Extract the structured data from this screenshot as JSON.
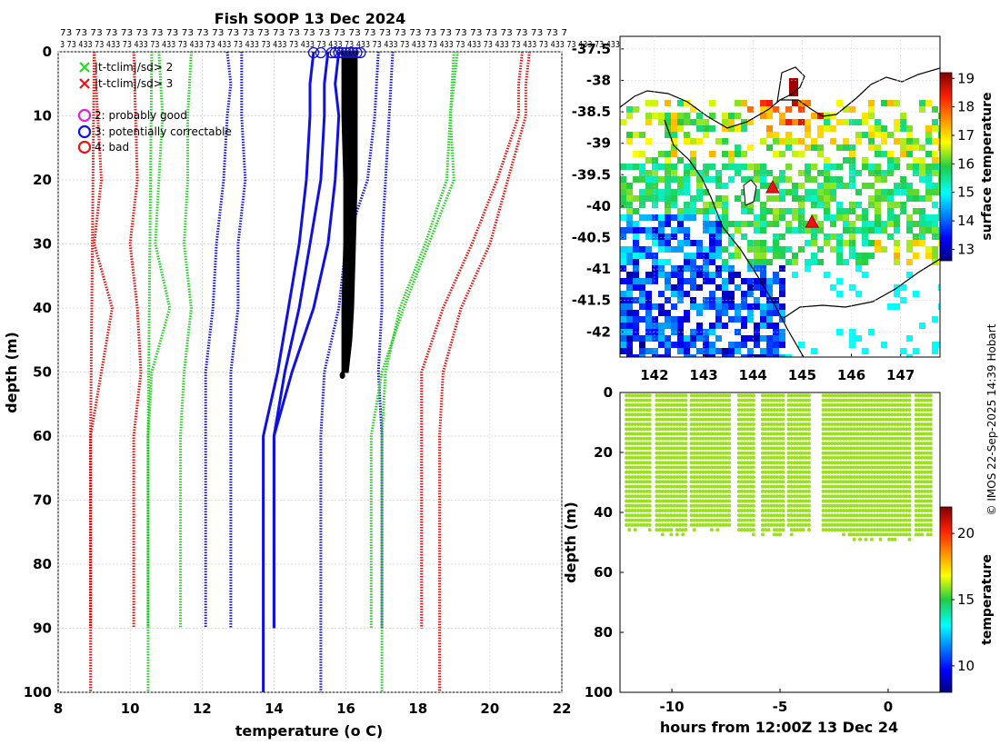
{
  "chart_data": [
    {
      "type": "line",
      "title": "Fish SOOP 13 Dec 2024",
      "xlabel": "temperature",
      "xlabel_unit": "(o C)",
      "ylabel": "depth (m)",
      "xlim": [
        8,
        22
      ],
      "ylim": [
        0,
        100
      ],
      "x_ticks": [
        "8",
        "10",
        "12",
        "14",
        "16",
        "18",
        "20",
        "22"
      ],
      "y_ticks": [
        "0",
        "10",
        "20",
        "30",
        "40",
        "50",
        "60",
        "70",
        "80",
        "90",
        "100"
      ],
      "top_labels_row1": "73 73 73 73 73 73 73 73 73 73 73 73 73 73 73 73 73 73 73 73 73 73 73 73 73 73 73 73 73 73 73 73 73 7",
      "top_labels_row2": "3 73 433 73 433 73 433 73 433 73 433 73 433 73 433 73 433 73 433 73 433 73 433 73 433 73 433 73 433 73 433 73 433 73 433 73 433 73 433 73 433",
      "legend": [
        {
          "marker": "x",
          "color": "#22dd22",
          "label": "|t-tclim|/sd> 2"
        },
        {
          "marker": "x",
          "color": "#ee1111",
          "label": "|t-tclim|/sd> 3"
        },
        {
          "marker": "o",
          "color": "#dd22dd",
          "label": "2: probably good"
        },
        {
          "marker": "o",
          "color": "#1111dd",
          "label": "3: potentially correctable"
        },
        {
          "marker": "o",
          "color": "#ee1111",
          "label": "4: bad"
        }
      ],
      "series": [
        {
          "name": "clim -3sd A",
          "color": "#dd1111",
          "style": "dotted",
          "depth": [
            0,
            10,
            20,
            30,
            40,
            50,
            60,
            90
          ],
          "values": [
            9.0,
            9.1,
            9.2,
            9.0,
            9.5,
            9.2,
            8.9,
            8.9
          ]
        },
        {
          "name": "clim -3sd B",
          "color": "#dd1111",
          "style": "dotted",
          "depth": [
            0,
            60,
            100
          ],
          "values": [
            9.0,
            8.9,
            8.9
          ]
        },
        {
          "name": "clim -3sd C",
          "color": "#dd1111",
          "style": "dotted",
          "depth": [
            0,
            10,
            20,
            30,
            40,
            50,
            60,
            90
          ],
          "values": [
            10.1,
            10.15,
            10.2,
            10.0,
            10.2,
            10.3,
            10.1,
            10.1
          ]
        },
        {
          "name": "clim -2sd A",
          "color": "#22cc22",
          "style": "dotted",
          "depth": [
            0,
            10,
            20,
            30,
            40,
            50,
            60,
            90
          ],
          "values": [
            10.8,
            10.9,
            10.8,
            10.7,
            11.1,
            10.6,
            10.5,
            10.5
          ]
        },
        {
          "name": "clim -2sd B",
          "color": "#22cc22",
          "style": "dotted",
          "depth": [
            0,
            10,
            20,
            30,
            40,
            50,
            60,
            90
          ],
          "values": [
            11.7,
            11.6,
            11.6,
            11.5,
            11.7,
            11.5,
            11.4,
            11.4
          ]
        },
        {
          "name": "clim -2sd C",
          "color": "#22cc22",
          "style": "dotted",
          "depth": [
            0,
            60,
            100
          ],
          "values": [
            10.6,
            10.5,
            10.5
          ]
        },
        {
          "name": "clim -1sd A",
          "color": "#1111dd",
          "style": "dotted",
          "depth": [
            0,
            5,
            10,
            20,
            30,
            40,
            50,
            60,
            90
          ],
          "values": [
            12.7,
            12.8,
            12.7,
            12.6,
            12.4,
            12.3,
            12.1,
            12.1,
            12.1
          ]
        },
        {
          "name": "clim -1sd B",
          "color": "#1111dd",
          "style": "dotted",
          "depth": [
            0,
            10,
            20,
            30,
            40,
            50,
            60,
            90
          ],
          "values": [
            13.1,
            13.1,
            13.2,
            13.0,
            13.0,
            12.8,
            12.8,
            12.8
          ]
        },
        {
          "name": "clim +1sd A",
          "color": "#1111dd",
          "style": "dotted",
          "depth": [
            0,
            10,
            20,
            30,
            40,
            50,
            60,
            100
          ],
          "values": [
            16.9,
            16.8,
            16.6,
            16.0,
            15.8,
            15.4,
            15.3,
            15.3
          ]
        },
        {
          "name": "clim +1sd B",
          "color": "#1111dd",
          "style": "dotted",
          "depth": [
            0,
            10,
            20,
            30,
            40,
            50,
            60,
            90
          ],
          "values": [
            17.3,
            17.2,
            17.1,
            17.0,
            17.0,
            16.9,
            17.0,
            17.0
          ]
        },
        {
          "name": "clim +2sd A",
          "color": "#22cc22",
          "style": "dotted",
          "depth": [
            0,
            10,
            20,
            30,
            40,
            50,
            60,
            90
          ],
          "values": [
            19.0,
            18.9,
            19.0,
            18.3,
            17.6,
            17.0,
            16.7,
            16.7
          ]
        },
        {
          "name": "clim +2sd B",
          "color": "#22cc22",
          "style": "dotted",
          "depth": [
            0,
            10,
            20,
            30,
            40,
            50,
            60,
            100
          ],
          "values": [
            19.1,
            18.9,
            18.8,
            18.2,
            17.5,
            17.1,
            17.0,
            17.0
          ]
        },
        {
          "name": "clim +3sd A",
          "color": "#dd1111",
          "style": "dotted",
          "depth": [
            0,
            5,
            10,
            20,
            30,
            40,
            50,
            60,
            90
          ],
          "values": [
            20.9,
            20.8,
            20.8,
            20.2,
            19.5,
            18.7,
            18.1,
            18.1,
            18.1
          ]
        },
        {
          "name": "clim +3sd B",
          "color": "#dd1111",
          "style": "dotted",
          "depth": [
            0,
            5,
            10,
            20,
            30,
            40,
            50,
            60,
            100
          ],
          "values": [
            21.1,
            21.0,
            21.0,
            20.5,
            20.0,
            19.2,
            18.7,
            18.6,
            18.6
          ]
        },
        {
          "name": "mean -1sd",
          "color": "#1111dd",
          "style": "solid",
          "depth": [
            0,
            5,
            10,
            20,
            30,
            40,
            50,
            60,
            100
          ],
          "values": [
            15.1,
            15.0,
            15.0,
            14.9,
            14.7,
            14.4,
            14.1,
            13.7,
            13.7
          ]
        },
        {
          "name": "mean +1sd A",
          "color": "#1111dd",
          "style": "solid",
          "depth": [
            0,
            5,
            10,
            20,
            30,
            40,
            50,
            60,
            90
          ],
          "values": [
            15.5,
            15.4,
            15.4,
            15.3,
            15.0,
            14.7,
            14.3,
            14.0,
            14.0
          ]
        },
        {
          "name": "mean +1sd B",
          "color": "#1111dd",
          "style": "solid",
          "depth": [
            0,
            5,
            10,
            20,
            30,
            40,
            50,
            60,
            90
          ],
          "values": [
            15.8,
            15.7,
            15.8,
            15.7,
            15.5,
            15.1,
            14.5,
            14.0,
            14.0
          ]
        }
      ],
      "profiles": {
        "name": "observed profiles",
        "color": "#000000",
        "depth": [
          0,
          10,
          20,
          30,
          40,
          45,
          50
        ],
        "left": [
          15.9,
          15.9,
          15.95,
          15.95,
          15.9,
          15.9,
          15.9
        ],
        "right": [
          16.3,
          16.3,
          16.3,
          16.25,
          16.2,
          16.15,
          16.05
        ]
      },
      "flag_circles": {
        "color": "#1111dd",
        "depth": 0,
        "temps": [
          15.1,
          15.3,
          15.6,
          15.7,
          15.8,
          15.9,
          16.0,
          16.1,
          16.2,
          16.3,
          16.4
        ]
      }
    },
    {
      "type": "heatmap",
      "title": "surface temperature map",
      "x_ticks": [
        "142",
        "143",
        "144",
        "145",
        "146",
        "147"
      ],
      "xlim": [
        141.3,
        147.8
      ],
      "ylim": [
        -42.4,
        -37.3
      ],
      "y_ticks": [
        "-37.5",
        "-38",
        "-38.5",
        "-39",
        "-39.5",
        "-40",
        "-40.5",
        "-41",
        "-41.5",
        "-42"
      ],
      "colorbar_label": "surface temperature",
      "colorbar_ticks": [
        "13",
        "14",
        "15",
        "16",
        "17",
        "18",
        "19"
      ],
      "colorbar_range": [
        12.6,
        19.2
      ],
      "stations": [
        {
          "lon": 144.4,
          "lat": -39.7
        },
        {
          "lon": 145.2,
          "lat": -40.25
        }
      ]
    },
    {
      "type": "scatter",
      "xlabel": "hours from 12:00Z 13 Dec 24",
      "ylabel": "depth (m)",
      "xlim": [
        -12.4,
        2.4
      ],
      "ylim": [
        100,
        0
      ],
      "x_ticks": [
        "-10",
        "-5",
        "0"
      ],
      "y_ticks": [
        "0",
        "20",
        "40",
        "60",
        "80",
        "100"
      ],
      "colorbar_label": "temperature",
      "colorbar_ticks": [
        "10",
        "15",
        "20"
      ],
      "colorbar_range": [
        8,
        22
      ],
      "point_temperature": 16.0,
      "point_color": "#9be01c",
      "segments": [
        {
          "x0": -12.1,
          "x1": -10.9,
          "max_depth": 47
        },
        {
          "x0": -10.7,
          "x1": -9.3,
          "max_depth": 48
        },
        {
          "x0": -9.1,
          "x1": -7.3,
          "max_depth": 47
        },
        {
          "x0": -6.9,
          "x1": -6.2,
          "max_depth": 48
        },
        {
          "x0": -5.8,
          "x1": -4.8,
          "max_depth": 48
        },
        {
          "x0": -4.6,
          "x1": -3.6,
          "max_depth": 48
        },
        {
          "x0": -3.0,
          "x1": -1.7,
          "max_depth": 48
        },
        {
          "x0": -1.7,
          "x1": 1.1,
          "max_depth": 50
        },
        {
          "x0": 1.3,
          "x1": 2.1,
          "max_depth": 49
        }
      ]
    }
  ],
  "watermark": "© IMOS 22-Sep-2025 14:39 Hobart"
}
